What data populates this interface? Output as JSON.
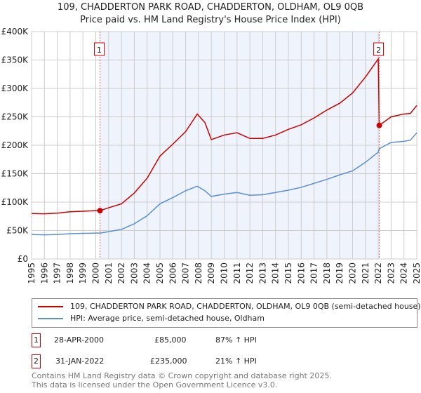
{
  "chart_data": {
    "type": "line",
    "title": "109, CHADDERTON PARK ROAD, CHADDERTON, OLDHAM, OL9 0QB",
    "subtitle": "Price paid vs. HM Land Registry's House Price Index (HPI)",
    "xlim": [
      1995,
      2025
    ],
    "ylim": [
      0,
      400000
    ],
    "x_ticks": [
      "1995",
      "1996",
      "1997",
      "1998",
      "1999",
      "2000",
      "2001",
      "2002",
      "2003",
      "2004",
      "2005",
      "2006",
      "2007",
      "2008",
      "2009",
      "2010",
      "2011",
      "2012",
      "2013",
      "2014",
      "2015",
      "2016",
      "2017",
      "2018",
      "2019",
      "2020",
      "2021",
      "2022",
      "2023",
      "2024",
      "2025"
    ],
    "y_ticks": [
      {
        "v": 0,
        "label": "£0"
      },
      {
        "v": 50000,
        "label": "£50K"
      },
      {
        "v": 100000,
        "label": "£100K"
      },
      {
        "v": 150000,
        "label": "£150K"
      },
      {
        "v": 200000,
        "label": "£200K"
      },
      {
        "v": 250000,
        "label": "£250K"
      },
      {
        "v": 300000,
        "label": "£300K"
      },
      {
        "v": 350000,
        "label": "£350K"
      },
      {
        "v": 400000,
        "label": "£400K"
      }
    ],
    "grid": true,
    "colors": {
      "property": "#cc0000",
      "hpi": "#5b8fd4",
      "shade": "#eef3fc"
    },
    "series": [
      {
        "name": "109, CHADDERTON PARK ROAD, CHADDERTON, OLDHAM, OL9 0QB (semi-detached house)",
        "x": [
          1995,
          1996,
          1997,
          1998,
          1999,
          2000,
          2000.33,
          2001,
          2002,
          2003,
          2004,
          2005,
          2006,
          2007,
          2007.9,
          2008.5,
          2009,
          2010,
          2011,
          2012,
          2013,
          2014,
          2015,
          2016,
          2017,
          2018,
          2019,
          2020,
          2021,
          2022.0,
          2022.08,
          2023,
          2024,
          2024.5,
          2025
        ],
        "y": [
          80000,
          79500,
          80500,
          83000,
          84000,
          85000,
          85000,
          90000,
          97000,
          116000,
          142000,
          181000,
          202000,
          224000,
          255000,
          240000,
          210000,
          218000,
          222000,
          212000,
          212000,
          218000,
          228000,
          236000,
          248000,
          262000,
          274000,
          292000,
          320000,
          352000,
          235000,
          250000,
          255000,
          256000,
          270000
        ]
      },
      {
        "name": "HPI: Average price, semi-detached house, Oldham",
        "x": [
          1995,
          1996,
          1997,
          1998,
          1999,
          2000,
          2000.33,
          2001,
          2002,
          2003,
          2004,
          2005,
          2006,
          2007,
          2007.9,
          2008.5,
          2009,
          2010,
          2011,
          2012,
          2013,
          2014,
          2015,
          2016,
          2017,
          2018,
          2019,
          2020,
          2021,
          2022.0,
          2022.08,
          2023,
          2024,
          2024.5,
          2025
        ],
        "y": [
          43000,
          42500,
          43000,
          44500,
          45000,
          45500,
          45500,
          48000,
          52000,
          62000,
          76000,
          97000,
          108000,
          120000,
          128000,
          120000,
          110000,
          114000,
          117000,
          112000,
          113000,
          117000,
          121000,
          126000,
          133000,
          140000,
          148000,
          155000,
          170000,
          188000,
          194000,
          205000,
          207000,
          209000,
          222000
        ]
      }
    ],
    "annotations": [
      {
        "label": "1",
        "x": 2000.33,
        "y": 85000
      },
      {
        "label": "2",
        "x": 2022.08,
        "y": 235000
      }
    ]
  },
  "legend": {
    "property": "109, CHADDERTON PARK ROAD, CHADDERTON, OLDHAM, OL9 0QB (semi-detached house)",
    "hpi": "HPI: Average price, semi-detached house, Oldham"
  },
  "transactions": [
    {
      "num": "1",
      "date": "28-APR-2000",
      "price": "£85,000",
      "hpi": "87% ↑ HPI"
    },
    {
      "num": "2",
      "date": "31-JAN-2022",
      "price": "£235,000",
      "hpi": "21% ↑ HPI"
    }
  ],
  "footer": {
    "line1": "Contains HM Land Registry data © Crown copyright and database right 2025.",
    "line2": "This data is licensed under the Open Government Licence v3.0."
  }
}
